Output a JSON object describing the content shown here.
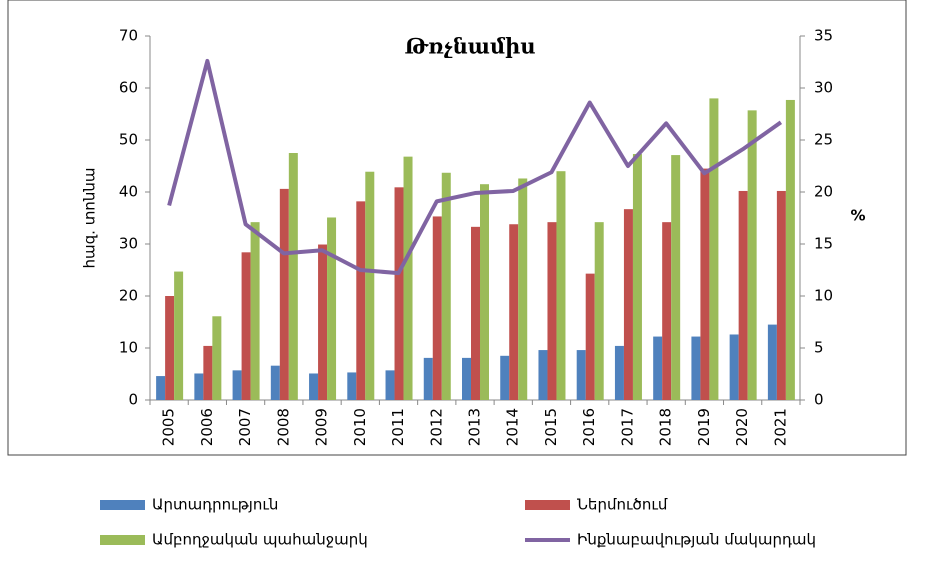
{
  "chart_data": {
    "type": "bar-line",
    "title": "Թռչնամիս",
    "y_label": "հազ. տոննա",
    "y2_label": "%",
    "categories": [
      "2005",
      "2006",
      "2007",
      "2008",
      "2009",
      "2010",
      "2011",
      "2012",
      "2013",
      "2014",
      "2015",
      "2016",
      "2017",
      "2018",
      "2019",
      "2020",
      "2021"
    ],
    "series": [
      {
        "name": "Արտադրություն",
        "color": "#4f81bd",
        "type": "bar",
        "values": [
          4.6,
          5.1,
          5.7,
          6.6,
          5.1,
          5.3,
          5.7,
          8.1,
          8.1,
          8.5,
          9.6,
          9.6,
          10.4,
          12.2,
          12.2,
          12.6,
          14.5
        ]
      },
      {
        "name": "Ներմուծում",
        "color": "#c0504d",
        "type": "bar",
        "values": [
          20,
          10.4,
          28.4,
          40.6,
          29.9,
          38.2,
          40.9,
          35.3,
          33.3,
          33.8,
          34.2,
          24.3,
          36.7,
          34.2,
          44.5,
          40.2,
          40.2
        ]
      },
      {
        "name": "Ամբողջական պահանջարկ",
        "color": "#9bbb59",
        "type": "bar",
        "values": [
          24.7,
          16.1,
          34.2,
          47.5,
          35.1,
          43.9,
          46.8,
          43.7,
          41.5,
          42.6,
          44,
          34.2,
          47.3,
          47.1,
          58,
          55.7,
          57.7
        ]
      },
      {
        "name": "Ինքնաբավության մակարդակ",
        "color": "#8064a2",
        "type": "line",
        "axis": "y2",
        "values": [
          18.7,
          32.6,
          16.9,
          14.1,
          14.4,
          12.5,
          12.2,
          19.1,
          19.9,
          20.1,
          21.9,
          28.6,
          22.5,
          26.6,
          21.8,
          24.1,
          26.7
        ]
      }
    ],
    "ylim": [
      0,
      70
    ],
    "yticks": [
      0,
      10,
      20,
      30,
      40,
      50,
      60,
      70
    ],
    "y2lim": [
      0,
      35
    ],
    "y2ticks": [
      0,
      5,
      10,
      15,
      20,
      25,
      30,
      35
    ]
  }
}
